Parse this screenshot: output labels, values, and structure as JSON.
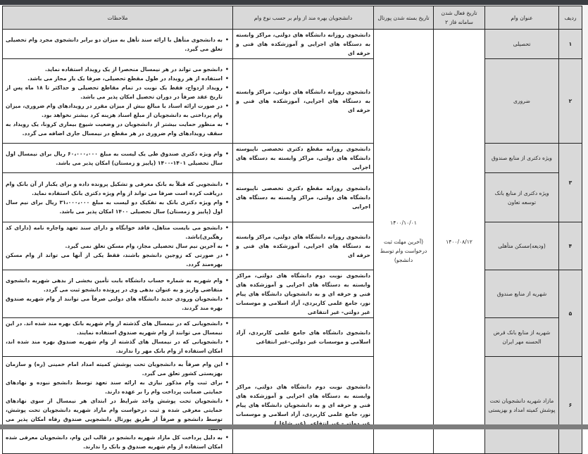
{
  "headers": {
    "row": "ردیف",
    "title": "عنوان وام",
    "phase2": "تاریخ فعال شدن سامانه فاز ۲",
    "portal_close": "تاریخ بسته شدن پورتال",
    "beneficiaries": "دانشجویان بهره مند از وام بر حسب نوع وام",
    "notes": "ملاحظات"
  },
  "phase2_date": "۱۴۰۰/۰۸/۱۲",
  "portal_close": {
    "date": "۱۴۰۰/۱۰/۰۱",
    "note": "(آخرین مهلت ثبت درخواست وام توسط دانشجو)"
  },
  "groups": [
    {
      "number": "۱",
      "loans": [
        {
          "title": "تحصیلی",
          "beneficiaries": "دانشجوی روزانه دانشگاه های دولتی، مراکز وابسته به دستگاه های اجرایی و آموزشکده های فنی و حرفه ای",
          "notes": [
            "به دانشجوی متأهل با ارائه سند تأهل به میزان دو برابر دانشجوی مجرد وام تحصیلی تعلق می گیرد."
          ]
        }
      ]
    },
    {
      "number": "۲",
      "loans": [
        {
          "title": "ضروری",
          "beneficiaries": "دانشجوی روزانه دانشگاه های دولتی، مراکز وابسته به دستگاه های اجرایی، آموزشکده های فنی و حرفه ای",
          "notes": [
            "دانشجو می تواند در هر نیمسال منحصرا از یک رویداد استفاده نماید.",
            "استفاده از هر رویداد در طول مقطع تحصیلی، صرفا یک بار مجاز می باشد.",
            "رویداد ازدواج، فقط یک نوبت در تمام مقاطع تحصیلی و حداکثر تا ۱۸ ماه پس از تاریخ عقد صرفاً در دوران تحصیل امکان پذیر می باشد.",
            "در صورت ارائه اسناد با مبالغ بیش از میزان مقرر در رویدادهای وام ضروری، میزان وام پرداختی به دانشجویان از مبلغ اسناد هزینه کرد بیشتر نخواهد بود.",
            "به منظور حمایت بیشتر از دانشجویان در وضعیت شیوع بیماری کرونا، یک رویداد به سقف رویدادهای وام ضروری در هر مقطع در نیمسال جاری اضافه می گردد."
          ]
        }
      ]
    },
    {
      "number": "۳",
      "loans": [
        {
          "title": "ویژه دکتری از منابع صندوق",
          "beneficiaries": "دانشجوی روزانه مقطع دکتری تخصصی ناپیوسته دانشگاه های دولتی، مراکز وابسته به دستگاه های اجرایی",
          "notes": [
            "وام ویژه دکتری صندوق طی یک لیست به مبلغ ۶۰،۰۰۰،۰۰۰ ریال برای نیمسال اول سال تحصیلی ۱۴۰۱-۱۴۰۰ (پاییز و زمستان) امکان پذیر می باشد."
          ]
        },
        {
          "title": "ویژه دکتری از منابع بانک توسعه تعاون",
          "beneficiaries": "دانشجوی روزانه مقطع دکتری تخصصی ناپیوسته دانشگاه های دولتی، مراکز وابسته به دستگاه های اجرایی",
          "notes": [
            "دانشجویی که قبلاً به بانک معرفی و تشکیل پرونده داده و برای یکبار از آن بانک وام دریافت کرده است صرفا می تواند از وام ویژه دکتری بانک استفاده نماید.",
            "وام ویژه دکتری بانک به تفکیک دو لیست به مبلغ ۳۱،۰۰۰،۰۰۰ ریال برای نیم سال اول (پاییز و زمستان) سال تحصیلی ۱۴۰۰ امکان پذیر می باشد."
          ]
        }
      ]
    },
    {
      "number": "۴",
      "loans": [
        {
          "title": "(ودیعه)مسکن متأهلی",
          "beneficiaries": "دانشجوی روزانه دانشگاه های دولتی، مراکز وابسته به دستگاه های اجرایی، آموزشکده های فنی و حرفه ای",
          "notes": [
            "دانشجو می بایست متاهل، فاقد خوابگاه و دارای سند تعهد واجاره نامه (دارای کد رهگیری)باشد.",
            "به آخرین نیم سال تحصیلی مجاز، وام مسکن تعلق نمی گیرد.",
            "در صورتی که زوجین دانشجو باشند، فقط یکی از آنها می تواند از وام مسکن بهره‌مند گردد."
          ]
        }
      ]
    },
    {
      "number": "۵",
      "loans": [
        {
          "title": "شهریه از منابع صندوق",
          "beneficiaries": "دانشجوی نوبت دوم دانشگاه های دولتی، مراکز وابسته به دستگاه های اجرایی و آموزشکده های فنی و حرفه ای و به دانشجویان دانشگاه های پیام نور، جامع علمی کاربردی، آزاد اسلامی و موسسات غیر دولتی- غیر انتفاعی",
          "notes": [
            "وام شهریه به شماره حساب دانشگاه بابت تأمین بخشی از بدهی شهریه دانشجوی متقاضی واریز و به عنوان بدهی وی در پرونده دانشجو ثبت می گردد.",
            "دانشجویان ورودی جدید دانشگاه های دولتی صرفاً می توانند از وام شهریه صندوق بهره مند گردند."
          ]
        },
        {
          "title": "شهریه از منابع بانک قرض الحسنه مهر ایران",
          "beneficiaries": "دانشجوی دانشگاه های جامع علمی کاربردی، آزاد اسلامی و موسسات غیر دولتی-غیر انتفاعی",
          "notes": [
            "دانشجویانی که در نیمسال های گذشته از وام شهریه بانک بهره مند شده اند. در این نیمسال می توانند از وام شهریه صندوق استفاده نمایند.",
            "دانشجویانی که در نیمسال های گذشته از وام شهریه صندوق بهره مند شده اند، امکان استفاده از وام بانک مهر را ندارند."
          ]
        }
      ]
    },
    {
      "number": "۶",
      "loans": [
        {
          "title": "مازاد شهریه دانشجویان تحت پوشش کمیته امداد و بهزیستی",
          "beneficiaries": "دانشجوی نوبت دوم دانشگاه های دولتی، مراکز وابسته به دستگاه های اجرایی و آموزشکده های فنی و حرفه ای و به دانشجویان دانشگاه های پیام نور، جامع علمی کاربردی، آزاد اسلامی و موسسات غیر دولتی- غیر انتفاعی (غیر شاغل)",
          "notes": [
            "این وام صرفاً به دانشجویان تحت پوشش کمیته امداد امام خمینی (ره) و سازمان بهزیستی کشور تعلق می گیرد.",
            "برای ثبت وام مذکور نیازی به ارائه سند تعهد توسط دانشجو نبوده و نهادهای حمایتی ضمانت پرداخت وام را بر عهده دارند.",
            "دانشجویان تحت پوشش واجد شرایط در ابتدای هر نیمسال از سوی نهادهای حمایتی معرفی شده و ثبت درخواست وام مازاد شهریه دانشجویان تحت پوشش، توسط دانشجو و صرفاً از طریق پورتال دانشجویی صندوق رفاه امکان پذیر می باشد.",
            "به دلیل پرداخت کل مازاد شهریه دانشجو در قالب این وام، دانشجویان معرفی شده امکان استفاده از وام شهریه صندوق و بانک را ندارند."
          ]
        }
      ]
    }
  ]
}
